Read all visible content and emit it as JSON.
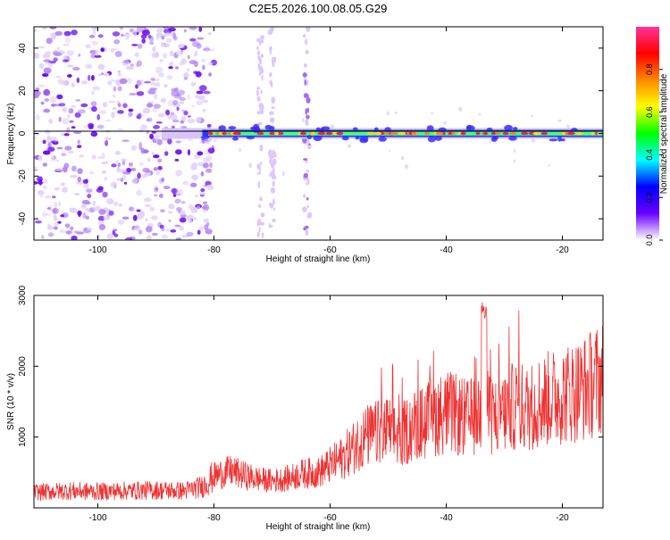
{
  "title": "C2E5.2026.100.08.05.G29",
  "colors": {
    "snr_line": "#ee3333",
    "signal_line": "#000000",
    "background": "#ffffff",
    "colorbar": [
      "#ffffff",
      "#6a00ff",
      "#0000ff",
      "#00ffff",
      "#00ff00",
      "#ffff00",
      "#ff8800",
      "#ff0000",
      "#ff3399"
    ]
  },
  "chart_data": [
    {
      "type": "heatmap",
      "title": "",
      "xlabel": "Height of straight line (km)",
      "ylabel": "Frequency (Hz)",
      "xlim": [
        -111,
        -13
      ],
      "ylim": [
        -50,
        50
      ],
      "x_ticks": [
        -100,
        -80,
        -60,
        -40,
        -20
      ],
      "y_ticks": [
        -40,
        -20,
        0,
        20,
        40
      ],
      "grid": false,
      "signal_frequency_hz": 0,
      "noise_region_x": [
        -111,
        -80
      ],
      "colorbar": {
        "label": "Normalized spectral amplitude",
        "range": [
          0.0,
          1.0
        ],
        "ticks": [
          0.0,
          0.2,
          0.4,
          0.6,
          0.8
        ]
      }
    },
    {
      "type": "line",
      "title": "",
      "xlabel": "Height of straight line (km)",
      "ylabel": "SNR (10 * v/v)",
      "xlim": [
        -111,
        -13
      ],
      "ylim": [
        0,
        3000
      ],
      "x_ticks": [
        -100,
        -80,
        -60,
        -40,
        -20
      ],
      "y_ticks": [
        1000,
        2000,
        3000
      ],
      "grid": false,
      "series": [
        {
          "x": [
            -111,
            -105,
            -100,
            -95,
            -90,
            -85,
            -82,
            -80,
            -77,
            -75,
            -72,
            -70,
            -67,
            -65,
            -62,
            -60,
            -58,
            -56,
            -54,
            -52,
            -50,
            -48,
            -46,
            -44,
            -42,
            -40,
            -38,
            -36,
            -34,
            -32,
            -30,
            -28,
            -26,
            -24,
            -22,
            -20,
            -18,
            -16,
            -14,
            -13
          ],
          "y": [
            220,
            240,
            230,
            240,
            250,
            240,
            300,
            450,
            520,
            460,
            400,
            380,
            420,
            480,
            500,
            600,
            700,
            850,
            1000,
            1050,
            1100,
            1000,
            1150,
            1200,
            1300,
            1350,
            1300,
            1250,
            1400,
            1300,
            1350,
            1450,
            1400,
            1500,
            1550,
            1600,
            1650,
            1700,
            1800,
            1850
          ]
        }
      ]
    }
  ]
}
